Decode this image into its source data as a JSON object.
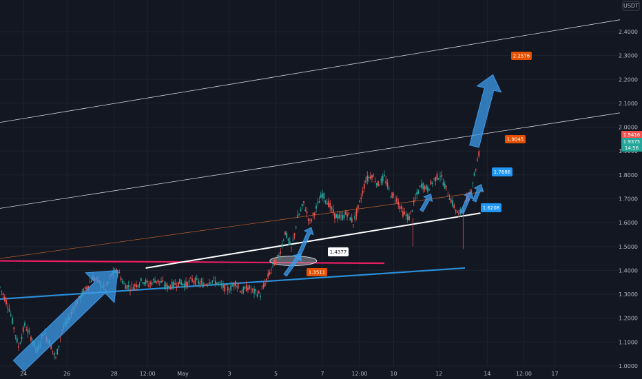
{
  "currency": "USDT",
  "colors": {
    "background": "#131722",
    "grid": "#1e222d",
    "up": "#26a69a",
    "down": "#ef5350",
    "channel": "#d1d4dc",
    "trend_blue": "#2a8fd8",
    "support_red": "#e91e63",
    "support_white": "#ffffff",
    "arrow_blue": "#3d9be9",
    "label_orange": "#e65100",
    "label_blue": "#2196f3",
    "label_white": "#ffffff"
  },
  "chart_data": {
    "type": "candlestick",
    "y_axis": {
      "min": 1.0,
      "max": 2.4,
      "ticks": [
        "1.0000",
        "1.1000",
        "1.2000",
        "1.3000",
        "1.4000",
        "1.5000",
        "1.6000",
        "1.7000",
        "1.8000",
        "1.9000",
        "2.0000",
        "2.1000",
        "2.2000",
        "2.3000",
        "2.4000"
      ]
    },
    "x_axis": {
      "ticks": [
        "24",
        "26",
        "28",
        "12:00",
        "May",
        "3",
        "5",
        "7",
        "12:00",
        "10",
        "12",
        "14",
        "12:00",
        "17"
      ]
    },
    "current_price": {
      "value": "1.9416",
      "last": "1.9375",
      "countdown": "14:56"
    },
    "labels": [
      {
        "name": "target-label",
        "text": "2.2576",
        "style": "orange"
      },
      {
        "name": "high-label",
        "text": "1.9045",
        "style": "orange"
      },
      {
        "name": "level-1-7686",
        "text": "1.7686",
        "style": "blue"
      },
      {
        "name": "level-1-6208",
        "text": "1.6208",
        "style": "blue"
      },
      {
        "name": "breakout-label",
        "text": "1.4377",
        "style": "white"
      },
      {
        "name": "retest-label",
        "text": "1.3511",
        "style": "orange"
      }
    ],
    "price_path": [
      [
        0.0,
        1.33
      ],
      [
        1.5,
        1.24
      ],
      [
        3.0,
        1.08
      ],
      [
        4.0,
        1.17
      ],
      [
        5.0,
        1.12
      ],
      [
        6.0,
        1.06
      ],
      [
        7.0,
        1.14
      ],
      [
        8.0,
        1.1
      ],
      [
        9.0,
        1.03
      ],
      [
        10.0,
        1.15
      ],
      [
        11.0,
        1.19
      ],
      [
        12.0,
        1.25
      ],
      [
        13.0,
        1.29
      ],
      [
        14.0,
        1.33
      ],
      [
        15.0,
        1.37
      ],
      [
        16.0,
        1.35
      ],
      [
        17.0,
        1.32
      ],
      [
        18.0,
        1.38
      ],
      [
        19.0,
        1.4
      ],
      [
        20.0,
        1.34
      ],
      [
        21.0,
        1.33
      ],
      [
        22.0,
        1.34
      ],
      [
        23.0,
        1.36
      ],
      [
        24.0,
        1.34
      ],
      [
        25.0,
        1.36
      ],
      [
        26.0,
        1.35
      ],
      [
        27.0,
        1.33
      ],
      [
        28.0,
        1.34
      ],
      [
        29.0,
        1.35
      ],
      [
        30.0,
        1.34
      ],
      [
        31.0,
        1.36
      ],
      [
        32.0,
        1.35
      ],
      [
        33.0,
        1.34
      ],
      [
        34.0,
        1.36
      ],
      [
        35.0,
        1.35
      ],
      [
        36.0,
        1.33
      ],
      [
        37.0,
        1.32
      ],
      [
        38.0,
        1.35
      ],
      [
        39.0,
        1.31
      ],
      [
        40.0,
        1.33
      ],
      [
        41.0,
        1.31
      ],
      [
        42.0,
        1.3
      ],
      [
        43.0,
        1.36
      ],
      [
        44.0,
        1.42
      ],
      [
        45.0,
        1.46
      ],
      [
        46.0,
        1.56
      ],
      [
        47.0,
        1.49
      ],
      [
        48.0,
        1.62
      ],
      [
        49.0,
        1.68
      ],
      [
        50.0,
        1.6
      ],
      [
        51.0,
        1.66
      ],
      [
        52.0,
        1.72
      ],
      [
        53.0,
        1.68
      ],
      [
        54.0,
        1.63
      ],
      [
        55.0,
        1.62
      ],
      [
        56.0,
        1.64
      ],
      [
        57.0,
        1.6
      ],
      [
        58.0,
        1.68
      ],
      [
        59.0,
        1.78
      ],
      [
        60.0,
        1.8
      ],
      [
        61.0,
        1.76
      ],
      [
        62.0,
        1.79
      ],
      [
        63.0,
        1.72
      ],
      [
        64.0,
        1.7
      ],
      [
        65.0,
        1.64
      ],
      [
        66.0,
        1.62
      ],
      [
        67.0,
        1.7
      ],
      [
        68.0,
        1.76
      ],
      [
        69.0,
        1.74
      ],
      [
        70.0,
        1.78
      ],
      [
        71.0,
        1.8
      ],
      [
        72.0,
        1.74
      ],
      [
        73.0,
        1.68
      ],
      [
        74.0,
        1.63
      ],
      [
        75.0,
        1.68
      ],
      [
        75.8,
        1.72
      ],
      [
        76.5,
        1.8
      ],
      [
        77.5,
        1.92
      ]
    ],
    "annotations": {
      "channel_upper": [
        [
          0,
          2.02
        ],
        [
          100,
          2.45
        ]
      ],
      "channel_middle": [
        [
          0,
          1.66
        ],
        [
          100,
          2.06
        ]
      ],
      "channel_lower_thin": [
        [
          0,
          1.45
        ],
        [
          78,
          1.73
        ]
      ],
      "trend_blue": [
        [
          0,
          1.28
        ],
        [
          75,
          1.41
        ]
      ],
      "support_red": [
        [
          0,
          1.44
        ],
        [
          62,
          1.43
        ]
      ],
      "support_white": [
        [
          23.5,
          1.41
        ],
        [
          77.5,
          1.64
        ]
      ],
      "big_arrow": [
        [
          3,
          1.0
        ],
        [
          19,
          1.4
        ]
      ],
      "small_arrows": [
        [
          [
            46,
            1.38
          ],
          [
            48.5,
            1.47
          ]
        ],
        [
          [
            48,
            1.45
          ],
          [
            50.2,
            1.58
          ]
        ],
        [
          [
            68,
            1.65
          ],
          [
            69.5,
            1.72
          ]
        ],
        [
          [
            74.5,
            1.64
          ],
          [
            76,
            1.73
          ]
        ],
        [
          [
            76.5,
            1.69
          ],
          [
            77.6,
            1.76
          ]
        ]
      ],
      "target_arrow": [
        [
          76.5,
          1.92
        ],
        [
          79.5,
          2.22
        ]
      ],
      "ellipse_center": [
        47.3,
        1.44
      ]
    }
  }
}
